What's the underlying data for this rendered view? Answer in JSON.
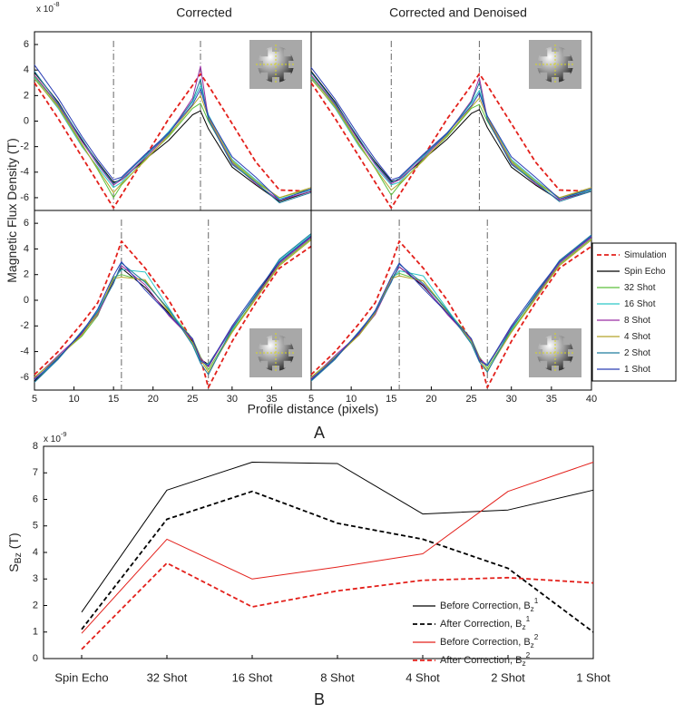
{
  "chart_data": [
    {
      "type": "line",
      "title": "Corrected",
      "ylabel": "Magnetic Flux Density (T)",
      "y_multiplier": "x 10^-8",
      "legend": "right",
      "x": [
        5,
        8,
        11,
        13,
        15,
        16,
        19,
        22,
        25,
        26,
        27,
        30,
        33,
        36,
        40
      ],
      "xlim": [
        5,
        40
      ],
      "ylim": [
        -7,
        7
      ],
      "yticks": [
        6,
        4,
        2,
        0,
        -2,
        -4,
        -6
      ],
      "reference_lines": [
        15,
        26
      ],
      "series": [
        {
          "name": "Simulation",
          "color": "#e3201b",
          "dash": true,
          "values": [
            3.0,
            0.2,
            -2.8,
            -4.8,
            -6.8,
            -5.8,
            -2.8,
            0.2,
            2.8,
            3.7,
            2.8,
            -0.2,
            -3.2,
            -5.4,
            -5.5
          ]
        },
        {
          "name": "Spin Echo",
          "color": "#000000",
          "values": [
            3.8,
            1.5,
            -1.5,
            -3.2,
            -4.8,
            -4.6,
            -3.0,
            -1.5,
            0.5,
            0.8,
            -0.6,
            -3.6,
            -5.0,
            -6.3,
            -5.5
          ]
        },
        {
          "name": "32 Shot",
          "color": "#5cbf3a",
          "values": [
            3.5,
            1.2,
            -1.8,
            -3.8,
            -6.0,
            -5.0,
            -3.0,
            -1.2,
            1.0,
            1.4,
            0.0,
            -3.2,
            -4.8,
            -6.0,
            -5.3
          ]
        },
        {
          "name": "16 Shot",
          "color": "#2cc6c6",
          "values": [
            3.4,
            1.0,
            -2.0,
            -3.6,
            -5.2,
            -4.8,
            -2.8,
            -0.8,
            1.5,
            2.8,
            0.5,
            -3.0,
            -4.6,
            -6.1,
            -5.4
          ]
        },
        {
          "name": "8 Shot",
          "color": "#9a2fa3",
          "values": [
            3.6,
            1.3,
            -1.6,
            -3.4,
            -5.0,
            -4.6,
            -2.9,
            -1.0,
            1.8,
            4.3,
            0.2,
            -3.3,
            -4.9,
            -6.2,
            -5.5
          ]
        },
        {
          "name": "4 Shot",
          "color": "#b3a52a",
          "values": [
            3.3,
            1.1,
            -1.9,
            -3.7,
            -5.6,
            -4.9,
            -3.1,
            -1.1,
            1.2,
            2.0,
            0.3,
            -3.1,
            -4.7,
            -6.0,
            -5.2
          ]
        },
        {
          "name": "2 Shot",
          "color": "#1e7c9e",
          "values": [
            3.9,
            1.4,
            -1.4,
            -3.3,
            -4.9,
            -4.5,
            -2.7,
            -1.0,
            1.6,
            3.3,
            0.1,
            -3.4,
            -4.8,
            -6.4,
            -5.6
          ]
        },
        {
          "name": "1 Shot",
          "color": "#2a3db5",
          "values": [
            4.4,
            1.8,
            -1.2,
            -3.0,
            -4.6,
            -4.4,
            -2.6,
            -0.9,
            1.3,
            2.5,
            0.4,
            -2.8,
            -4.4,
            -6.2,
            -5.3
          ]
        }
      ]
    },
    {
      "type": "line",
      "title": "Corrected and Denoised",
      "x": [
        5,
        8,
        11,
        13,
        15,
        16,
        19,
        22,
        25,
        26,
        27,
        30,
        33,
        36,
        40
      ],
      "xlim": [
        5,
        40
      ],
      "ylim": [
        -7,
        7
      ],
      "reference_lines": [
        15,
        26
      ],
      "series": [
        {
          "color": "#e3201b",
          "dash": true,
          "values": [
            3.0,
            0.2,
            -2.8,
            -4.8,
            -6.8,
            -5.8,
            -2.8,
            0.2,
            2.8,
            3.7,
            2.8,
            -0.2,
            -3.2,
            -5.4,
            -5.5
          ]
        },
        {
          "color": "#000000",
          "values": [
            3.9,
            1.5,
            -1.5,
            -3.2,
            -4.7,
            -4.6,
            -3.0,
            -1.4,
            0.6,
            0.9,
            -0.5,
            -3.6,
            -5.0,
            -6.2,
            -5.4
          ]
        },
        {
          "color": "#5cbf3a",
          "values": [
            3.5,
            1.2,
            -1.8,
            -3.7,
            -5.8,
            -5.0,
            -3.0,
            -1.2,
            1.0,
            1.3,
            0.0,
            -3.2,
            -4.8,
            -6.0,
            -5.3
          ]
        },
        {
          "color": "#2cc6c6",
          "values": [
            3.4,
            1.0,
            -2.0,
            -3.6,
            -5.0,
            -4.8,
            -2.8,
            -0.9,
            1.4,
            2.4,
            0.4,
            -3.0,
            -4.6,
            -6.1,
            -5.4
          ]
        },
        {
          "color": "#9a2fa3",
          "values": [
            3.6,
            1.3,
            -1.6,
            -3.4,
            -4.9,
            -4.6,
            -2.9,
            -1.0,
            1.6,
            3.4,
            0.2,
            -3.3,
            -4.9,
            -6.2,
            -5.5
          ]
        },
        {
          "color": "#b3a52a",
          "values": [
            3.3,
            1.1,
            -1.9,
            -3.7,
            -5.4,
            -4.9,
            -3.1,
            -1.1,
            1.1,
            1.8,
            0.3,
            -3.1,
            -4.7,
            -6.0,
            -5.2
          ]
        },
        {
          "color": "#1e7c9e",
          "values": [
            3.8,
            1.4,
            -1.4,
            -3.3,
            -4.8,
            -4.5,
            -2.7,
            -1.0,
            1.5,
            3.0,
            0.1,
            -3.4,
            -4.8,
            -6.3,
            -5.5
          ]
        },
        {
          "color": "#2a3db5",
          "values": [
            4.2,
            1.7,
            -1.2,
            -3.0,
            -4.6,
            -4.4,
            -2.6,
            -0.9,
            1.2,
            2.2,
            0.4,
            -2.8,
            -4.4,
            -6.1,
            -5.3
          ]
        }
      ]
    },
    {
      "type": "line",
      "xlabel": "Profile distance (pixels)",
      "panel_label": "A",
      "x": [
        5,
        8,
        11,
        13,
        15,
        16,
        19,
        22,
        25,
        26,
        27,
        30,
        33,
        36,
        40
      ],
      "xlim": [
        5,
        40
      ],
      "ylim": [
        -7,
        7
      ],
      "yticks": [
        6,
        4,
        2,
        0,
        -2,
        -4,
        -6
      ],
      "xticks": [
        5,
        10,
        15,
        20,
        25,
        30,
        35
      ],
      "reference_lines": [
        16,
        27
      ],
      "series": [
        {
          "color": "#e3201b",
          "dash": true,
          "values": [
            -5.8,
            -4.0,
            -1.8,
            -0.2,
            2.8,
            4.6,
            2.5,
            0.0,
            -3.2,
            -4.5,
            -6.8,
            -3.2,
            -0.2,
            2.5,
            4.2
          ]
        },
        {
          "color": "#000000",
          "values": [
            -6.3,
            -4.5,
            -2.6,
            -1.0,
            1.5,
            2.5,
            1.0,
            -1.0,
            -3.2,
            -4.6,
            -5.0,
            -2.2,
            0.4,
            3.0,
            5.0
          ]
        },
        {
          "color": "#5cbf3a",
          "values": [
            -6.0,
            -4.4,
            -2.8,
            -1.2,
            1.8,
            2.0,
            1.5,
            -0.8,
            -3.0,
            -4.4,
            -5.4,
            -2.4,
            0.2,
            2.8,
            4.8
          ]
        },
        {
          "color": "#2cc6c6",
          "values": [
            -6.2,
            -4.6,
            -2.5,
            -0.8,
            1.6,
            2.4,
            2.2,
            -0.6,
            -3.4,
            -4.8,
            -5.0,
            -2.3,
            0.5,
            3.1,
            5.1
          ]
        },
        {
          "color": "#9a2fa3",
          "values": [
            -6.1,
            -4.3,
            -2.6,
            -1.1,
            1.4,
            2.7,
            1.2,
            -1.2,
            -3.1,
            -4.5,
            -5.2,
            -2.1,
            0.3,
            2.9,
            4.9
          ]
        },
        {
          "color": "#b3a52a",
          "values": [
            -6.0,
            -4.5,
            -2.7,
            -1.0,
            1.7,
            1.8,
            1.6,
            -0.9,
            -3.3,
            -4.6,
            -5.6,
            -2.5,
            0.1,
            2.7,
            4.7
          ]
        },
        {
          "color": "#1e7c9e",
          "values": [
            -6.4,
            -4.6,
            -2.4,
            -0.9,
            1.3,
            2.9,
            1.4,
            -0.7,
            -3.5,
            -4.9,
            -5.8,
            -2.2,
            0.4,
            3.2,
            5.2
          ]
        },
        {
          "color": "#2a3db5",
          "values": [
            -6.2,
            -4.5,
            -2.5,
            -0.7,
            1.9,
            3.0,
            0.8,
            -1.1,
            -3.0,
            -4.7,
            -5.1,
            -2.0,
            0.6,
            3.0,
            5.0
          ]
        }
      ]
    },
    {
      "type": "line",
      "x": [
        5,
        8,
        11,
        13,
        15,
        16,
        19,
        22,
        25,
        26,
        27,
        30,
        33,
        36,
        40
      ],
      "xlim": [
        5,
        40
      ],
      "ylim": [
        -7,
        7
      ],
      "xticks": [
        5,
        10,
        15,
        20,
        25,
        30,
        35,
        40
      ],
      "reference_lines": [
        16,
        27
      ],
      "series": [
        {
          "color": "#e3201b",
          "dash": true,
          "values": [
            -5.8,
            -4.0,
            -1.8,
            -0.2,
            2.8,
            4.6,
            2.5,
            0.0,
            -3.2,
            -4.5,
            -6.8,
            -3.2,
            -0.2,
            2.5,
            4.2
          ]
        },
        {
          "color": "#000000",
          "values": [
            -6.2,
            -4.5,
            -2.6,
            -1.0,
            1.6,
            2.6,
            1.1,
            -1.0,
            -3.2,
            -4.6,
            -5.1,
            -2.2,
            0.4,
            3.0,
            5.0
          ]
        },
        {
          "color": "#5cbf3a",
          "values": [
            -6.0,
            -4.4,
            -2.7,
            -1.1,
            1.8,
            2.1,
            1.5,
            -0.8,
            -3.0,
            -4.4,
            -5.3,
            -2.4,
            0.2,
            2.8,
            4.8
          ]
        },
        {
          "color": "#2cc6c6",
          "values": [
            -6.1,
            -4.5,
            -2.5,
            -0.9,
            1.6,
            2.3,
            1.9,
            -0.7,
            -3.3,
            -4.7,
            -5.0,
            -2.3,
            0.5,
            3.0,
            5.0
          ]
        },
        {
          "color": "#9a2fa3",
          "values": [
            -6.1,
            -4.3,
            -2.6,
            -1.1,
            1.5,
            2.6,
            1.2,
            -1.1,
            -3.1,
            -4.5,
            -5.1,
            -2.1,
            0.3,
            2.9,
            4.9
          ]
        },
        {
          "color": "#b3a52a",
          "values": [
            -6.0,
            -4.5,
            -2.7,
            -1.0,
            1.7,
            1.9,
            1.5,
            -0.9,
            -3.2,
            -4.6,
            -5.5,
            -2.5,
            0.1,
            2.7,
            4.7
          ]
        },
        {
          "color": "#1e7c9e",
          "values": [
            -6.3,
            -4.6,
            -2.4,
            -0.9,
            1.4,
            2.8,
            1.3,
            -0.8,
            -3.4,
            -4.8,
            -5.6,
            -2.2,
            0.4,
            3.1,
            5.1
          ]
        },
        {
          "color": "#2a3db5",
          "values": [
            -6.2,
            -4.5,
            -2.5,
            -0.8,
            1.8,
            2.9,
            0.9,
            -1.0,
            -3.0,
            -4.7,
            -5.1,
            -2.0,
            0.6,
            3.0,
            5.0
          ]
        }
      ]
    },
    {
      "type": "line",
      "ylabel": "S_Bz (T)",
      "y_multiplier": "x 10^-9",
      "panel_label": "B",
      "legend": "lower right",
      "categories": [
        "Spin Echo",
        "32 Shot",
        "16 Shot",
        "8 Shot",
        "4 Shot",
        "2 Shot",
        "1 Shot"
      ],
      "ylim": [
        0,
        8
      ],
      "yticks": [
        0,
        1,
        2,
        3,
        4,
        5,
        6,
        7,
        8
      ],
      "series": [
        {
          "name": "Before Correction, B_z^1",
          "color": "#000000",
          "values": [
            1.75,
            6.35,
            7.4,
            7.35,
            5.45,
            5.6,
            6.35
          ]
        },
        {
          "name": "After Correction, B_z^1",
          "color": "#000000",
          "dash": true,
          "values": [
            1.1,
            5.25,
            6.3,
            5.1,
            4.5,
            3.4,
            1.0
          ]
        },
        {
          "name": "Before Correction, B_z^2",
          "color": "#e3201b",
          "values": [
            0.95,
            4.5,
            3.0,
            3.45,
            3.95,
            6.3,
            7.4
          ]
        },
        {
          "name": "After Correction, B_z^2",
          "color": "#e3201b",
          "dash": true,
          "values": [
            0.35,
            3.6,
            1.95,
            2.55,
            2.95,
            3.05,
            2.85
          ]
        }
      ]
    }
  ]
}
